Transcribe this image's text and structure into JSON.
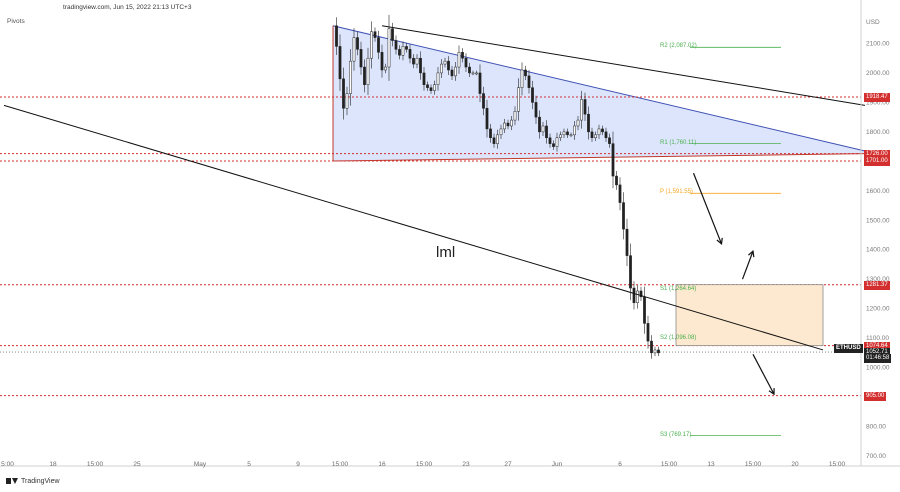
{
  "header": {
    "text": "tradingview.com, Jun 15, 2022 21:13 UTC+3",
    "pivots_label": "Pivots",
    "footer_brand": "TradingView",
    "currency": "USD"
  },
  "annotation_text": "lml",
  "symbol_tag": "ETHUSD",
  "price_tags": [
    {
      "text": "1918.47",
      "value": 1918.47,
      "style": "red"
    },
    {
      "text": "1726.00",
      "value": 1726.0,
      "style": "red"
    },
    {
      "text": "1701.00",
      "value": 1701.0,
      "style": "red"
    },
    {
      "text": "1281.37",
      "value": 1281.37,
      "style": "red"
    },
    {
      "text": "1074.64",
      "value": 1074.64,
      "style": "red"
    },
    {
      "text": "1052.71",
      "value": 1052.71,
      "style": "black"
    },
    {
      "text": "01:46:58",
      "value": 1032,
      "style": "black"
    },
    {
      "text": "905.00",
      "value": 905.0,
      "style": "red"
    }
  ],
  "pivot_levels": [
    {
      "text": "R2 (2,087.02)",
      "value": 2087.02,
      "color": "#4caf50"
    },
    {
      "text": "R1 (1,760.11)",
      "value": 1760.11,
      "color": "#4caf50"
    },
    {
      "text": "P (1,591.55)",
      "value": 1591.55,
      "color": "#f5a623"
    },
    {
      "text": "S1 (1,264.64)",
      "value": 1264.64,
      "color": "#4caf50"
    },
    {
      "text": "S2 (1,096.08)",
      "value": 1096.08,
      "color": "#4caf50"
    },
    {
      "text": "S3 (769.17)",
      "value": 769.17,
      "color": "#4caf50"
    }
  ],
  "chart_data": {
    "type": "line",
    "title": "",
    "symbol": "ETHUSD",
    "xlabel": "",
    "ylabel": "USD",
    "ylim": [
      700,
      2200
    ],
    "y_ticks": [
      2100,
      2000,
      1900,
      1800,
      1700,
      1600,
      1500,
      1400,
      1300,
      1200,
      1100,
      1000,
      900,
      800,
      700
    ],
    "x_tick_labels": [
      "5:00",
      "18",
      "15:00",
      "25",
      "May",
      "5",
      "9",
      "15:00",
      "16",
      "15:00",
      "23",
      "27",
      "Jun",
      "6",
      "15:00",
      "13",
      "15:00",
      "20",
      "15:00"
    ],
    "x_tick_slots": [
      1,
      14,
      26,
      38,
      56,
      70,
      84,
      96,
      108,
      120,
      132,
      144,
      158,
      176,
      190,
      202,
      214,
      226,
      238
    ],
    "slot_count": 246,
    "price_series": {
      "name": "ETHUSD",
      "start_slot": 94,
      "values": [
        2160,
        2090,
        1980,
        1880,
        1930,
        2040,
        2120,
        2080,
        2020,
        1960,
        2050,
        2140,
        2120,
        2070,
        2010,
        2020,
        2150,
        2110,
        2080,
        2060,
        2090,
        2080,
        2050,
        2030,
        2050,
        2000,
        1960,
        1950,
        1940,
        1960,
        2000,
        2030,
        2040,
        2010,
        1990,
        2020,
        2070,
        2050,
        2020,
        2000,
        2000,
        2000,
        1930,
        1880,
        1810,
        1780,
        1760,
        1790,
        1810,
        1830,
        1820,
        1840,
        1870,
        1950,
        2010,
        1990,
        1950,
        1900,
        1850,
        1800,
        1820,
        1780,
        1760,
        1750,
        1780,
        1790,
        1800,
        1790,
        1790,
        1820,
        1840,
        1910,
        1860,
        1800,
        1780,
        1790,
        1810,
        1800,
        1780,
        1760,
        1650,
        1620,
        1560,
        1470,
        1380,
        1270,
        1220,
        1260,
        1240,
        1150,
        1090,
        1050,
        1060,
        1050
      ]
    },
    "triangle": {
      "top_left": [
        94,
        2160
      ],
      "apex": [
        246,
        1735
      ],
      "bottom_left": [
        94,
        1701
      ],
      "bottom_right": [
        246,
        1726
      ],
      "fill": "#d6e0fb",
      "edge_color": "#3f51b5"
    },
    "channel_upper": {
      "points": [
        [
          108,
          2160
        ],
        [
          246,
          1890
        ]
      ],
      "color": "#111111"
    },
    "channel_lower": {
      "points": [
        [
          0,
          1890
        ],
        [
          234,
          1060
        ]
      ],
      "color": "#111111"
    },
    "red_levels": [
      1918.47,
      1726.0,
      1701.0,
      1281.37,
      1074.64,
      905.0
    ],
    "current_price": 1052.71,
    "box": {
      "x": [
        192,
        234
      ],
      "y": [
        1074.64,
        1281.37
      ],
      "fill": "#fde9cf",
      "edge": "#8a8a8a"
    },
    "arrows": [
      {
        "from": [
          197,
          1660
        ],
        "to": [
          205,
          1420
        ]
      },
      {
        "from": [
          211,
          1300
        ],
        "to": [
          214,
          1395
        ]
      },
      {
        "from": [
          214,
          1045
        ],
        "to": [
          220,
          910
        ]
      }
    ]
  }
}
